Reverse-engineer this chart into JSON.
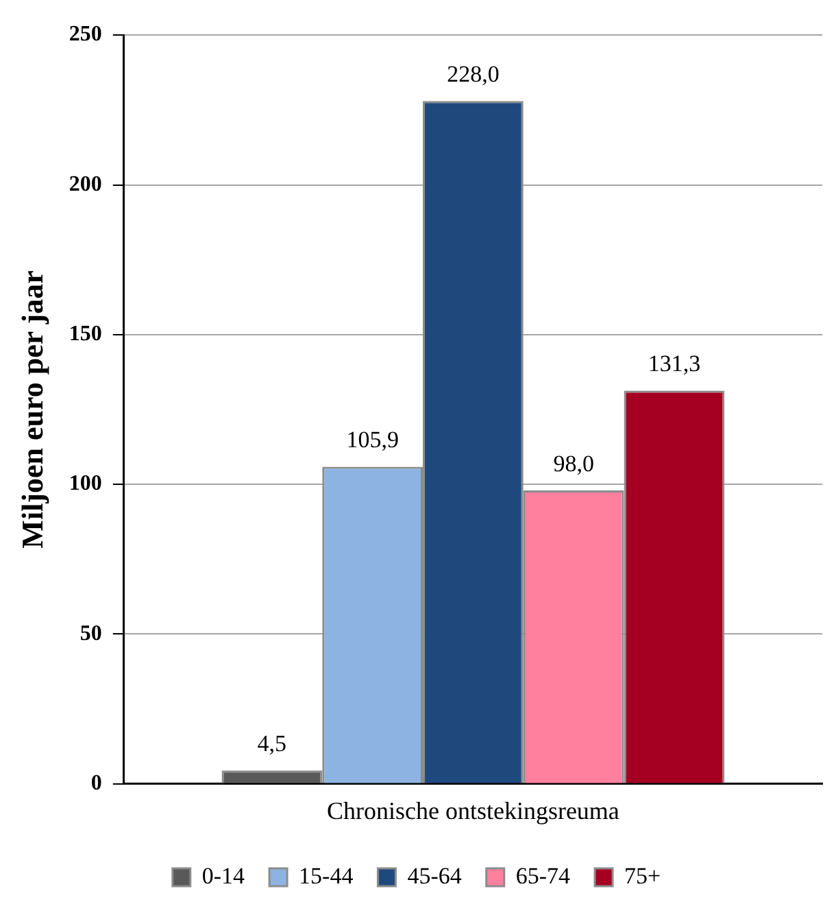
{
  "chart_data": {
    "type": "bar",
    "ylabel": "Miljoen euro per jaar",
    "categories": [
      "Chronische ontstekingsreuma"
    ],
    "series": [
      {
        "name": "0-14",
        "color": "#595959",
        "values": [
          4.5
        ],
        "value_labels": [
          "4,5"
        ]
      },
      {
        "name": "15-44",
        "color": "#8db3e2",
        "values": [
          105.9
        ],
        "value_labels": [
          "105,9"
        ]
      },
      {
        "name": "45-64",
        "color": "#1f497d",
        "values": [
          228.0
        ],
        "value_labels": [
          "228,0"
        ]
      },
      {
        "name": "65-74",
        "color": "#ff7f9f",
        "values": [
          98.0
        ],
        "value_labels": [
          "98,0"
        ]
      },
      {
        "name": "75+",
        "color": "#a50021",
        "values": [
          131.3
        ],
        "value_labels": [
          "131,3"
        ]
      }
    ],
    "ylim": [
      0,
      250
    ],
    "yticks": [
      0,
      50,
      100,
      150,
      200,
      250
    ],
    "grid": "y",
    "legend": "bottom"
  }
}
